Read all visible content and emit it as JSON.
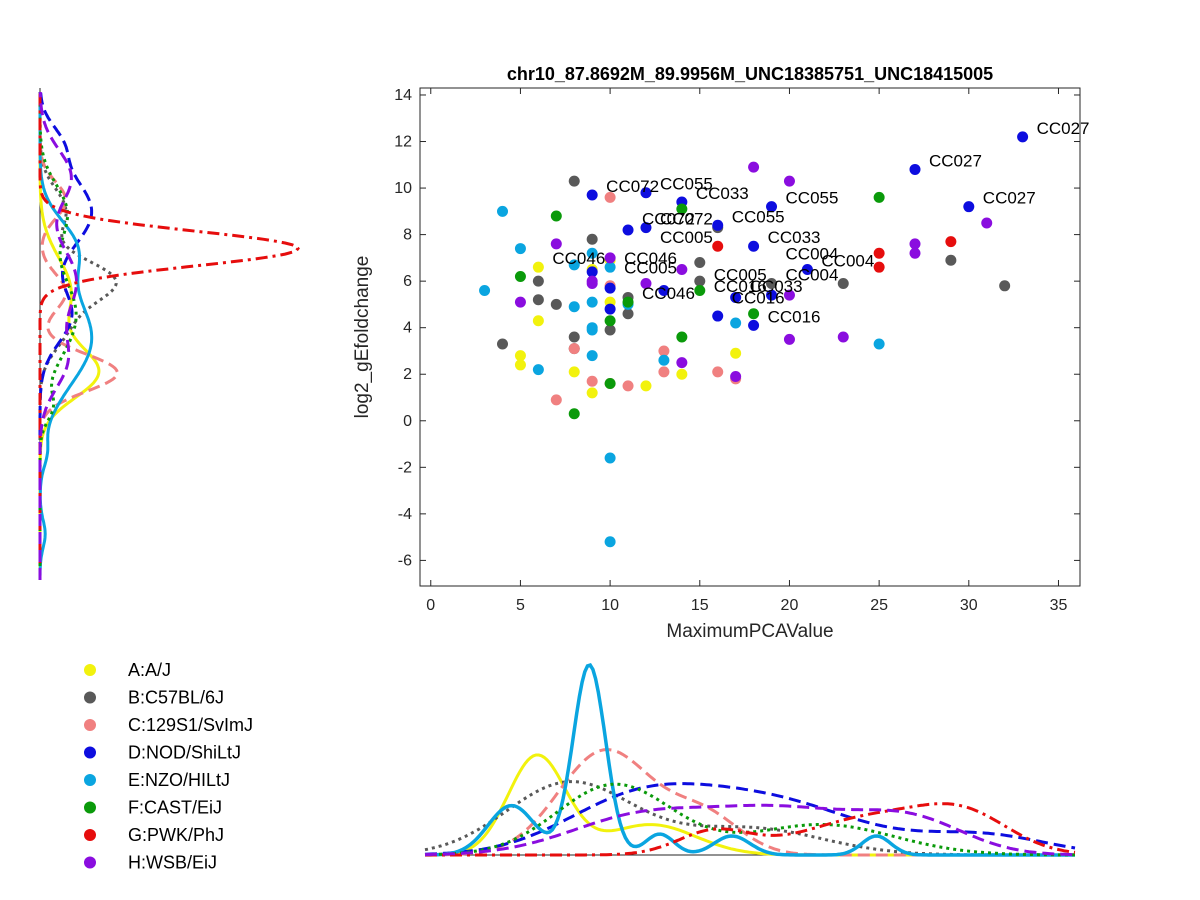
{
  "chart_data": {
    "type": "scatter",
    "title": "chr10_87.8692M_89.9956M_UNC18385751_UNC18415005",
    "xlabel": "MaximumPCAValue",
    "ylabel": "log2_gEfoldchange",
    "xlim": [
      -0.6,
      36.2
    ],
    "ylim": [
      -7.1,
      14.3
    ],
    "xticks": [
      0,
      5,
      10,
      15,
      20,
      25,
      30,
      35
    ],
    "yticks": [
      -6,
      -4,
      -2,
      0,
      2,
      4,
      6,
      8,
      10,
      12,
      14
    ],
    "legend_position": "bottom-left",
    "series": [
      {
        "name": "A:A/J",
        "color": "#f2f20d",
        "line": "solid",
        "x": [
          5,
          5,
          6,
          6,
          8,
          9,
          10,
          12,
          14,
          17,
          9,
          10
        ],
        "y": [
          2.8,
          2.4,
          4.3,
          6.6,
          2.1,
          1.2,
          5.1,
          1.5,
          2.0,
          2.9,
          6.5,
          6.9
        ]
      },
      {
        "name": "B:C57BL/6J",
        "color": "#595959",
        "line": "dotted",
        "x": [
          4,
          6,
          6,
          7,
          8,
          8,
          8,
          9,
          10,
          11,
          11,
          15,
          15,
          16,
          19,
          23,
          29,
          32
        ],
        "y": [
          3.3,
          6.0,
          5.2,
          5.0,
          10.3,
          3.6,
          3.1,
          7.8,
          3.9,
          4.6,
          5.3,
          6.8,
          6.0,
          8.3,
          5.9,
          5.9,
          6.9,
          5.8
        ]
      },
      {
        "name": "C:129S1/SvImJ",
        "color": "#f08080",
        "line": "dashed",
        "x": [
          7,
          8,
          9,
          10,
          10,
          11,
          13,
          13,
          16,
          17,
          10
        ],
        "y": [
          0.9,
          3.1,
          1.7,
          1.6,
          5.8,
          1.5,
          2.1,
          3.0,
          2.1,
          1.8,
          9.6
        ]
      },
      {
        "name": "D:NOD/ShiLtJ",
        "color": "#0d0ddf",
        "line": "dashed",
        "x": [
          9,
          12,
          14,
          16,
          18,
          18,
          19,
          21,
          27,
          30,
          33,
          16,
          17,
          19,
          9,
          10,
          12,
          11,
          13,
          10
        ],
        "y": [
          9.7,
          9.8,
          9.4,
          8.4,
          7.5,
          4.1,
          9.2,
          6.5,
          10.8,
          9.2,
          12.2,
          4.5,
          5.3,
          5.4,
          6.4,
          4.8,
          8.3,
          8.2,
          5.6,
          5.7
        ]
      },
      {
        "name": "E:NZO/HILtJ",
        "color": "#0aa5e0",
        "line": "solid",
        "x": [
          3,
          4,
          5,
          6,
          8,
          8,
          9,
          9,
          9,
          9,
          10,
          10,
          10,
          11,
          13,
          17,
          25,
          9
        ],
        "y": [
          5.6,
          9.0,
          7.4,
          2.2,
          6.7,
          4.9,
          5.1,
          4.0,
          3.9,
          2.8,
          -1.6,
          -5.2,
          6.6,
          5.0,
          2.6,
          4.2,
          3.3,
          7.2
        ]
      },
      {
        "name": "F:CAST/EiJ",
        "color": "#0a9a0a",
        "line": "dotted",
        "x": [
          5,
          7,
          8,
          10,
          10,
          11,
          14,
          14,
          15,
          18,
          25
        ],
        "y": [
          6.2,
          8.8,
          0.3,
          4.3,
          1.6,
          5.1,
          3.6,
          9.1,
          5.6,
          4.6,
          9.6
        ]
      },
      {
        "name": "G:PWK/PhJ",
        "color": "#e60d0d",
        "line": "dashdot",
        "x": [
          16,
          25,
          25,
          29
        ],
        "y": [
          7.5,
          7.2,
          6.6,
          7.7
        ]
      },
      {
        "name": "H:WSB/EiJ",
        "color": "#8a0ddf",
        "line": "dashed",
        "x": [
          5,
          7,
          9,
          9,
          10,
          12,
          14,
          14,
          17,
          18,
          20,
          20,
          20,
          23,
          27,
          27,
          31
        ],
        "y": [
          5.1,
          7.6,
          6.0,
          5.9,
          7.0,
          5.9,
          6.5,
          2.5,
          1.9,
          10.9,
          10.3,
          5.4,
          3.5,
          3.6,
          7.6,
          7.2,
          8.5
        ]
      }
    ],
    "annotations": [
      {
        "text": "CC027",
        "x": 33,
        "y": 12.2
      },
      {
        "text": "CC027",
        "x": 27,
        "y": 10.8
      },
      {
        "text": "CC027",
        "x": 30,
        "y": 9.2
      },
      {
        "text": "CC055",
        "x": 12,
        "y": 9.8
      },
      {
        "text": "CC072",
        "x": 9,
        "y": 9.7
      },
      {
        "text": "CC033",
        "x": 14,
        "y": 9.4
      },
      {
        "text": "CC055",
        "x": 19,
        "y": 9.2
      },
      {
        "text": "CC072",
        "x": 11,
        "y": 8.3
      },
      {
        "text": "CC072",
        "x": 12,
        "y": 8.3
      },
      {
        "text": "CC055",
        "x": 16,
        "y": 8.4
      },
      {
        "text": "CC033",
        "x": 18,
        "y": 7.5
      },
      {
        "text": "CC005",
        "x": 12,
        "y": 7.5
      },
      {
        "text": "CC004",
        "x": 19,
        "y": 6.8
      },
      {
        "text": "CC004",
        "x": 21,
        "y": 6.5
      },
      {
        "text": "CC046",
        "x": 6,
        "y": 6.6
      },
      {
        "text": "CC046",
        "x": 10,
        "y": 6.6
      },
      {
        "text": "CC005",
        "x": 10,
        "y": 6.2
      },
      {
        "text": "CC005",
        "x": 15,
        "y": 5.9
      },
      {
        "text": "CC004",
        "x": 19,
        "y": 5.9
      },
      {
        "text": "CC016",
        "x": 15,
        "y": 5.4
      },
      {
        "text": "CC033",
        "x": 17,
        "y": 5.4
      },
      {
        "text": "CC046",
        "x": 11,
        "y": 5.1
      },
      {
        "text": "CC016",
        "x": 16,
        "y": 4.9
      },
      {
        "text": "CC016",
        "x": 18,
        "y": 4.1
      }
    ],
    "density_bottom": {
      "axis": "MaximumPCAValue",
      "curves": [
        {
          "name": "A:A/J",
          "peaks": [
            [
              6.2,
              0.52,
              1.6
            ],
            [
              12.5,
              0.16,
              2.5
            ]
          ]
        },
        {
          "name": "B:C57BL/6J",
          "peaks": [
            [
              8.0,
              0.38,
              3.5
            ],
            [
              18.0,
              0.14,
              4.0
            ]
          ]
        },
        {
          "name": "C:129S1/SvImJ",
          "peaks": [
            [
              10.0,
              0.55,
              2.6
            ],
            [
              15.5,
              0.2,
              2.0
            ]
          ]
        },
        {
          "name": "D:NOD/ShiLtJ",
          "peaks": [
            [
              11.5,
              0.25,
              4.0
            ],
            [
              19.0,
              0.28,
              5.0
            ],
            [
              31.0,
              0.1,
              3.5
            ]
          ]
        },
        {
          "name": "E:NZO/HILtJ",
          "peaks": [
            [
              4.8,
              0.26,
              1.3
            ],
            [
              9.1,
              1.0,
              0.9
            ],
            [
              13.0,
              0.11,
              0.8
            ],
            [
              17.0,
              0.1,
              1.0
            ],
            [
              25.0,
              0.1,
              0.8
            ]
          ]
        },
        {
          "name": "F:CAST/EiJ",
          "peaks": [
            [
              10.5,
              0.37,
              3.2
            ],
            [
              22.0,
              0.16,
              4.0
            ]
          ]
        },
        {
          "name": "G:PWK/PhJ",
          "peaks": [
            [
              16.0,
              0.12,
              2.0
            ],
            [
              25.0,
              0.2,
              4.0
            ],
            [
              30.0,
              0.16,
              2.5
            ]
          ]
        },
        {
          "name": "H:WSB/EiJ",
          "peaks": [
            [
              12.0,
              0.2,
              4.0
            ],
            [
              20.0,
              0.22,
              4.0
            ],
            [
              27.0,
              0.17,
              3.0
            ]
          ]
        }
      ]
    },
    "density_left": {
      "axis": "log2_gEfoldchange",
      "curves": [
        {
          "name": "A:A/J",
          "peaks": [
            [
              2.0,
              0.22,
              1.1
            ],
            [
              5.5,
              0.12,
              1.5
            ]
          ]
        },
        {
          "name": "B:C57BL/6J",
          "peaks": [
            [
              6.0,
              0.28,
              0.9
            ],
            [
              9.0,
              0.1,
              1.0
            ],
            [
              4.0,
              0.1,
              1.0
            ]
          ]
        },
        {
          "name": "C:129S1/SvImJ",
          "peaks": [
            [
              2.0,
              0.3,
              0.8
            ],
            [
              5.5,
              0.1,
              0.8
            ],
            [
              9.5,
              0.1,
              0.8
            ]
          ]
        },
        {
          "name": "D:NOD/ShiLtJ",
          "peaks": [
            [
              4.5,
              0.12,
              1.2
            ],
            [
              9.0,
              0.2,
              1.6
            ],
            [
              12.0,
              0.06,
              0.8
            ]
          ]
        },
        {
          "name": "E:NZO/HILtJ",
          "peaks": [
            [
              3.5,
              0.2,
              2.0
            ],
            [
              7.5,
              0.12,
              1.2
            ],
            [
              -1.5,
              0.02,
              0.6
            ],
            [
              -5.0,
              0.02,
              0.6
            ]
          ]
        },
        {
          "name": "F:CAST/EiJ",
          "peaks": [
            [
              4.5,
              0.14,
              1.8
            ],
            [
              9.0,
              0.1,
              1.2
            ],
            [
              0.5,
              0.04,
              0.6
            ]
          ]
        },
        {
          "name": "G:PWK/PhJ",
          "peaks": [
            [
              7.4,
              1.0,
              0.75
            ]
          ]
        },
        {
          "name": "H:WSB/EiJ",
          "peaks": [
            [
              2.5,
              0.1,
              1.2
            ],
            [
              6.0,
              0.14,
              1.5
            ],
            [
              10.5,
              0.12,
              1.2
            ]
          ]
        }
      ]
    }
  }
}
